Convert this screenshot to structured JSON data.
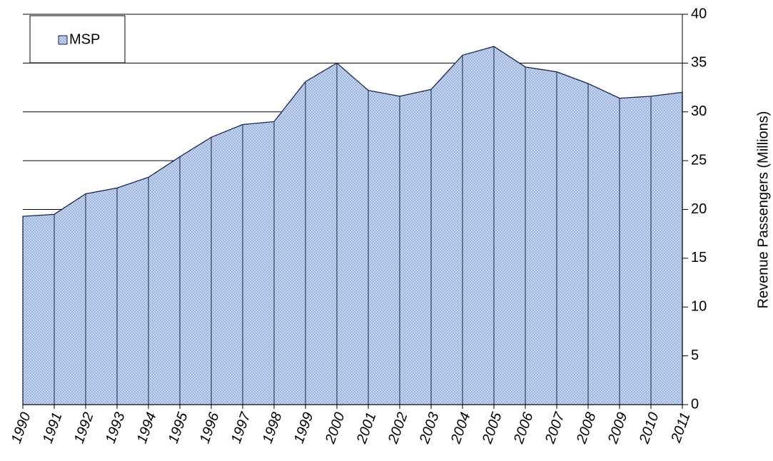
{
  "chart_data": {
    "type": "area",
    "categories": [
      "1990",
      "1991",
      "1992",
      "1993",
      "1994",
      "1995",
      "1996",
      "1997",
      "1998",
      "1999",
      "2000",
      "2001",
      "2002",
      "2003",
      "2004",
      "2005",
      "2006",
      "2007",
      "2008",
      "2009",
      "2010",
      "2011"
    ],
    "series": [
      {
        "name": "MSP",
        "color": "#a9bfe6",
        "values": [
          19.3,
          19.5,
          21.6,
          22.2,
          23.3,
          25.4,
          27.4,
          28.7,
          29.0,
          33.1,
          35.0,
          32.2,
          31.6,
          32.3,
          35.8,
          36.7,
          34.6,
          34.1,
          32.9,
          31.4,
          31.6,
          32.0
        ]
      }
    ],
    "y_label": "Revenue Passengers (Millions)",
    "ylim": [
      0,
      40
    ],
    "yticks": [
      0,
      5,
      10,
      15,
      20,
      25,
      30,
      35,
      40
    ],
    "grid": true,
    "legend": "upper left",
    "y_axis_side": "right"
  }
}
